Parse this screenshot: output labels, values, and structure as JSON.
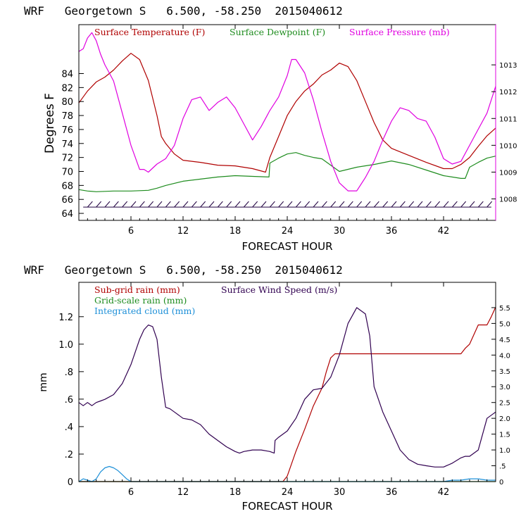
{
  "top_title": "WRF   Georgetown S   6.500, -58.250  2015040612",
  "bottom_title": "WRF   Georgetown S   6.500, -58.250  2015040612",
  "colors": {
    "temperature": "#b00000",
    "dewpoint": "#1e8c1e",
    "pressure": "#e000e0",
    "subgrid_rain": "#b00000",
    "gridscale_rain": "#1e8c1e",
    "cloud": "#1e90d8",
    "wind": "#300050",
    "barbs": "#200040"
  },
  "chart_data": [
    {
      "type": "line",
      "title": "WRF   Georgetown S   6.500, -58.250  2015040612",
      "xlabel": "FORECAST HOUR",
      "ylabel": "Degrees F",
      "xlim": [
        0,
        48
      ],
      "ylim": [
        63,
        91
      ],
      "y2lim": [
        1007.2,
        1014.5
      ],
      "xticks": [
        6,
        12,
        18,
        24,
        30,
        36,
        42
      ],
      "xtick_labels": [
        "6",
        "12",
        "18",
        "24",
        "30",
        "36",
        "42"
      ],
      "yticks": [
        64,
        66,
        68,
        70,
        72,
        74,
        76,
        78,
        80,
        82,
        84
      ],
      "ytick_labels": [
        "64",
        "66",
        "68",
        "70",
        "72",
        "74",
        "76",
        "78",
        "80",
        "82",
        "84"
      ],
      "y2ticks": [
        1008,
        1009,
        1010,
        1011,
        1012,
        1013
      ],
      "y2tick_labels": [
        "1008",
        "1009",
        "1010",
        "1011",
        "1012",
        "1013"
      ],
      "legend": [
        "Surface Temperature (F)",
        "Surface Dewpoint (F)",
        "Surface Pressure (mb)"
      ],
      "series": [
        {
          "name": "Surface Temperature (F)",
          "axis": "left",
          "x": [
            0,
            1,
            2,
            3,
            4,
            5,
            6,
            7,
            8,
            9,
            9.5,
            10,
            11,
            12,
            14,
            16,
            18,
            20,
            21.5,
            22,
            23,
            24,
            25,
            26,
            27,
            28,
            29,
            30,
            31,
            32,
            33,
            34,
            35,
            36,
            38,
            40,
            42,
            43,
            44,
            45,
            46,
            47,
            48
          ],
          "y": [
            79.8,
            81.5,
            82.8,
            83.5,
            84.5,
            85.8,
            86.9,
            86.0,
            83.0,
            78.0,
            75.0,
            74.0,
            72.5,
            71.6,
            71.3,
            70.9,
            70.8,
            70.4,
            69.9,
            72.0,
            75.0,
            78.0,
            80.0,
            81.5,
            82.5,
            83.8,
            84.5,
            85.5,
            85.0,
            83.0,
            80.0,
            77.0,
            74.5,
            73.3,
            72.3,
            71.3,
            70.4,
            70.4,
            71.0,
            72.0,
            73.6,
            75.1,
            76.2
          ]
        },
        {
          "name": "Surface Dewpoint (F)",
          "axis": "left",
          "x": [
            0,
            1,
            2,
            4,
            6,
            8,
            9,
            10,
            12,
            14,
            16,
            18,
            20,
            21.9,
            22,
            23,
            24,
            25,
            26,
            27,
            28,
            30,
            32,
            34,
            36,
            38,
            40,
            42,
            44,
            44.5,
            45,
            46,
            47,
            48
          ],
          "y": [
            67.4,
            67.2,
            67.1,
            67.2,
            67.2,
            67.3,
            67.6,
            68.0,
            68.6,
            68.9,
            69.2,
            69.4,
            69.3,
            69.2,
            71.2,
            71.9,
            72.5,
            72.7,
            72.3,
            72.0,
            71.8,
            70.0,
            70.6,
            71.0,
            71.5,
            71.0,
            70.2,
            69.4,
            69.0,
            69.0,
            70.6,
            71.3,
            71.9,
            72.2
          ]
        },
        {
          "name": "Surface Pressure (mb)",
          "axis": "right",
          "x": [
            0,
            0.5,
            1,
            1.5,
            2,
            2.5,
            3,
            3.5,
            4,
            5,
            6,
            7,
            7.5,
            8,
            9,
            10,
            11,
            12,
            13,
            14,
            15,
            16,
            17,
            18,
            19,
            20,
            21,
            22,
            23,
            24,
            24.5,
            25,
            26,
            27,
            28,
            29,
            30,
            31,
            31.5,
            32,
            33,
            34,
            35,
            36,
            37,
            38,
            39,
            40,
            41,
            42,
            43,
            44,
            45,
            46,
            47,
            48
          ],
          "y": [
            1013.5,
            1013.6,
            1014.0,
            1014.2,
            1013.9,
            1013.4,
            1013.0,
            1012.7,
            1012.4,
            1011.2,
            1010.0,
            1009.1,
            1009.1,
            1009.0,
            1009.3,
            1009.5,
            1010.0,
            1011.0,
            1011.7,
            1011.8,
            1011.3,
            1011.6,
            1011.8,
            1011.4,
            1010.8,
            1010.2,
            1010.7,
            1011.3,
            1011.8,
            1012.6,
            1013.2,
            1013.2,
            1012.7,
            1011.7,
            1010.5,
            1009.4,
            1008.6,
            1008.3,
            1008.3,
            1008.3,
            1008.8,
            1009.4,
            1010.2,
            1010.9,
            1011.4,
            1011.3,
            1011.0,
            1010.9,
            1010.3,
            1009.5,
            1009.3,
            1009.4,
            1010.0,
            1010.6,
            1011.2,
            1012.2
          ]
        }
      ]
    },
    {
      "type": "line",
      "title": "WRF   Georgetown S   6.500, -58.250  2015040612",
      "xlabel": "FORECAST HOUR",
      "ylabel": "mm",
      "xlim": [
        0,
        48
      ],
      "ylim": [
        0,
        1.45
      ],
      "y2lim": [
        0,
        6.3
      ],
      "xticks": [
        6,
        12,
        18,
        24,
        30,
        36,
        42
      ],
      "xtick_labels": [
        "6",
        "12",
        "18",
        "24",
        "30",
        "36",
        "42"
      ],
      "yticks": [
        0,
        0.2,
        0.4,
        0.6,
        0.8,
        1.0,
        1.2
      ],
      "ytick_labels": [
        "0",
        ".2",
        ".4",
        ".6",
        ".8",
        "1.0",
        "1.2"
      ],
      "y2ticks": [
        0,
        0.5,
        1.0,
        1.5,
        2.0,
        2.5,
        3.0,
        3.5,
        4.0,
        4.5,
        5.0,
        5.5
      ],
      "y2tick_labels": [
        "0",
        ".5",
        "1.0",
        "1.5",
        "2.0",
        "2.5",
        "3.0",
        "3.5",
        "4.0",
        "4.5",
        "5.0",
        "5.5"
      ],
      "legend": [
        "Sub-grid rain (mm)",
        "Surface Wind Speed (m/s)",
        "Grid-scale rain (mm)",
        "Integrated cloud (mm)"
      ],
      "series": [
        {
          "name": "Sub-grid rain (mm)",
          "axis": "left",
          "x": [
            0,
            23.5,
            24,
            25,
            26,
            27,
            28,
            28.5,
            29,
            29.5,
            30,
            44,
            44.5,
            45,
            46,
            47,
            47.5,
            48
          ],
          "y": [
            0,
            0,
            0.04,
            0.22,
            0.38,
            0.55,
            0.68,
            0.8,
            0.9,
            0.93,
            0.93,
            0.93,
            0.97,
            1.0,
            1.14,
            1.14,
            1.2,
            1.27
          ]
        },
        {
          "name": "Grid-scale rain (mm)",
          "axis": "left",
          "x": [
            0,
            48
          ],
          "y": [
            0,
            0
          ]
        },
        {
          "name": "Integrated cloud (mm)",
          "axis": "left",
          "x": [
            0,
            0.5,
            1.0,
            1.5,
            2,
            2.5,
            3,
            3.5,
            4,
            4.5,
            5,
            5.5,
            6,
            42,
            43,
            44,
            45,
            46,
            47,
            48
          ],
          "y": [
            0,
            0.02,
            0.01,
            0,
            0.02,
            0.07,
            0.1,
            0.11,
            0.1,
            0.08,
            0.05,
            0.02,
            0,
            0,
            0.01,
            0.01,
            0.02,
            0.02,
            0.01,
            0.01
          ]
        },
        {
          "name": "Surface Wind Speed (m/s)",
          "axis": "right",
          "x": [
            0,
            0.5,
            1,
            1.5,
            2,
            2.5,
            3,
            4,
            5,
            6,
            7,
            7.5,
            8,
            8.5,
            9,
            9.5,
            10,
            10.5,
            11,
            12,
            13,
            14,
            15,
            16,
            17,
            18,
            18.5,
            19,
            20,
            21,
            22,
            22.5,
            22.6,
            23,
            24,
            25,
            26,
            27,
            28,
            29,
            30,
            31,
            32,
            33,
            33.5,
            34,
            35,
            36,
            37,
            38,
            39,
            40,
            41,
            42,
            43,
            44,
            44.5,
            45,
            46,
            47,
            48
          ],
          "y": [
            2.5,
            2.4,
            2.5,
            2.4,
            2.5,
            2.55,
            2.6,
            2.75,
            3.1,
            3.7,
            4.5,
            4.8,
            4.95,
            4.9,
            4.5,
            3.3,
            2.35,
            2.3,
            2.2,
            2.0,
            1.95,
            1.8,
            1.5,
            1.3,
            1.1,
            0.95,
            0.9,
            0.95,
            1.0,
            1.0,
            0.95,
            0.9,
            1.3,
            1.4,
            1.6,
            2.0,
            2.6,
            2.9,
            2.95,
            3.3,
            4.0,
            5.0,
            5.5,
            5.3,
            4.6,
            3.0,
            2.2,
            1.6,
            1.0,
            0.7,
            0.55,
            0.5,
            0.46,
            0.46,
            0.58,
            0.75,
            0.8,
            0.8,
            1.0,
            2.0,
            2.2
          ]
        }
      ]
    }
  ]
}
